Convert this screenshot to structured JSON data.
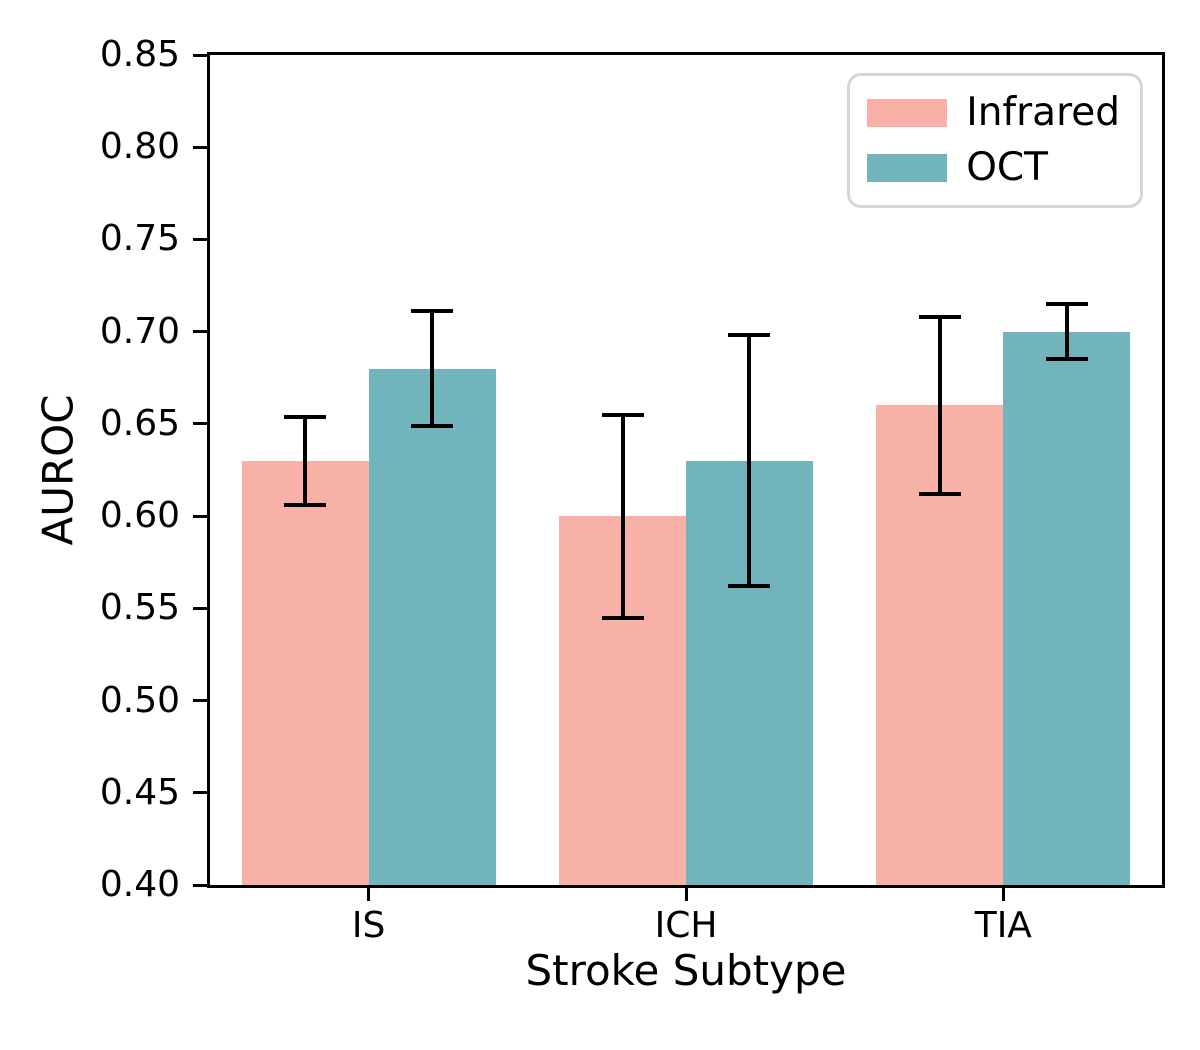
{
  "chart_data": {
    "type": "bar",
    "title": "",
    "xlabel": "Stroke Subtype",
    "ylabel": "AUROC",
    "categories": [
      "IS",
      "ICH",
      "TIA"
    ],
    "series": [
      {
        "name": "Infrared",
        "color": "#F8B1A6",
        "values": [
          0.63,
          0.6,
          0.66
        ],
        "error_low": [
          0.606,
          0.545,
          0.612
        ],
        "error_high": [
          0.654,
          0.655,
          0.708
        ]
      },
      {
        "name": "OCT",
        "color": "#72B4BC",
        "values": [
          0.68,
          0.63,
          0.7
        ],
        "error_low": [
          0.649,
          0.562,
          0.685
        ],
        "error_high": [
          0.711,
          0.698,
          0.715
        ]
      }
    ],
    "ylim": [
      0.4,
      0.85
    ],
    "yticks": [
      "0.40",
      "0.45",
      "0.50",
      "0.55",
      "0.60",
      "0.65",
      "0.70",
      "0.75",
      "0.80",
      "0.85"
    ],
    "bar_width_fraction": 0.4,
    "grid": false,
    "legend_position": "upper right",
    "error_bar_color": "#000000",
    "spine_color": "#000000",
    "background_color": "#ffffff"
  }
}
